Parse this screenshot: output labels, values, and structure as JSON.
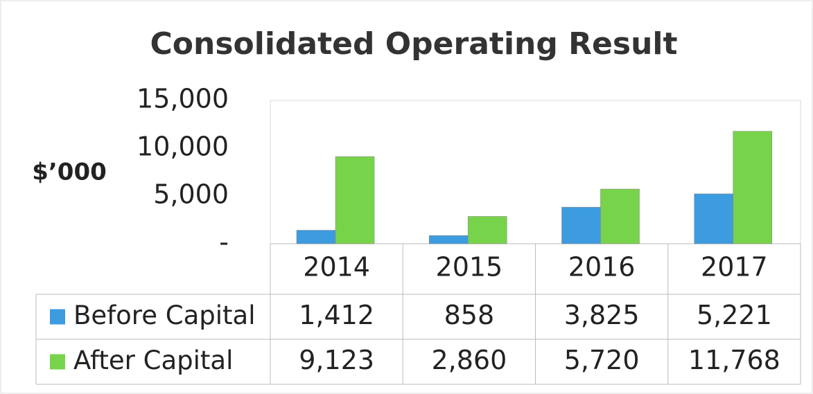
{
  "chart_data": {
    "type": "bar",
    "title": "Consolidated Operating Result",
    "y_label": "$’000",
    "categories": [
      "2014",
      "2015",
      "2016",
      "2017"
    ],
    "series": [
      {
        "name": "Before Capital",
        "color": "#3d9be0",
        "values": [
          1412,
          858,
          3825,
          5221
        ],
        "value_labels": [
          "1,412",
          "858",
          "3,825",
          "5,221"
        ]
      },
      {
        "name": "After Capital",
        "color": "#77d44a",
        "values": [
          9123,
          2860,
          5720,
          11768
        ],
        "value_labels": [
          "9,123",
          "2,860",
          "5,720",
          "11,768"
        ]
      }
    ],
    "ylim": [
      0,
      15000
    ],
    "yticks": [
      {
        "value": 0,
        "label": "-"
      },
      {
        "value": 5000,
        "label": "5,000"
      },
      {
        "value": 10000,
        "label": "10,000"
      },
      {
        "value": 15000,
        "label": "15,000"
      }
    ],
    "grid": false
  }
}
